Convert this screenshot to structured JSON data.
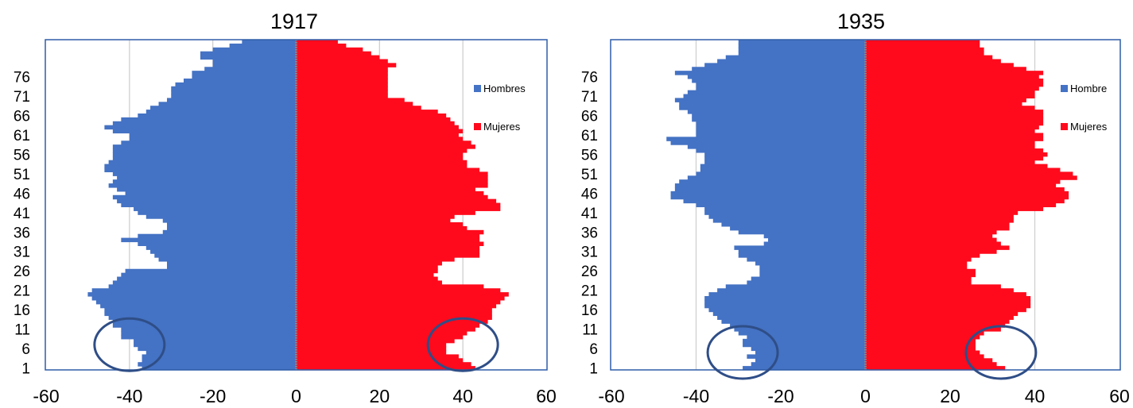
{
  "colors": {
    "men": "#4472c4",
    "women": "#ff0a1c",
    "frame": "#2e5da8",
    "grid": "#d0d0d0",
    "circle": "#2f4e87"
  },
  "chart_data": [
    {
      "type": "bar",
      "orientation": "horizontal-population-pyramid",
      "title": "1917",
      "xlim": [
        -60,
        60
      ],
      "x_ticks": [
        "-60",
        "-40",
        "-20",
        "0",
        "20",
        "40",
        "60"
      ],
      "ylim": [
        1,
        79
      ],
      "y_ticks": [
        "1",
        "6",
        "11",
        "16",
        "21",
        "26",
        "31",
        "36",
        "41",
        "46",
        "51",
        "56",
        "61",
        "66",
        "71",
        "76"
      ],
      "legend_position": "right",
      "grid": "vertical",
      "annotations": [
        {
          "type": "ellipse",
          "x": -40,
          "y": 7
        },
        {
          "type": "ellipse",
          "x": 40,
          "y": 7
        }
      ],
      "series": [
        {
          "name": "Hombres",
          "side": "left",
          "values": [
            -37,
            -38,
            -37,
            -37,
            -36,
            -38,
            -39,
            -39,
            -42,
            -42,
            -42,
            -44,
            -44,
            -45,
            -46,
            -46,
            -47,
            -48,
            -49,
            -50,
            -49,
            -45,
            -44,
            -43,
            -42,
            -41,
            -31,
            -31,
            -33,
            -34,
            -35,
            -36,
            -38,
            -42,
            -38,
            -32,
            -31,
            -31,
            -32,
            -36,
            -38,
            -39,
            -42,
            -43,
            -44,
            -41,
            -43,
            -45,
            -44,
            -43,
            -44,
            -46,
            -46,
            -45,
            -44,
            -44,
            -44,
            -44,
            -42,
            -40,
            -40,
            -44,
            -46,
            -44,
            -42,
            -38,
            -36,
            -35,
            -33,
            -31,
            -30,
            -30,
            -30,
            -29,
            -27,
            -25,
            -25,
            -22,
            -20,
            -20,
            -23,
            -23,
            -20,
            -16,
            -13
          ]
        },
        {
          "name": "Mujeres",
          "side": "right",
          "values": [
            43,
            42,
            40,
            39,
            36,
            36,
            36,
            38,
            40,
            41,
            43,
            44,
            46,
            47,
            47,
            47,
            48,
            49,
            50,
            51,
            49,
            45,
            35,
            34,
            33,
            34,
            34,
            35,
            38,
            44,
            44,
            44,
            45,
            44,
            44,
            45,
            41,
            40,
            37,
            38,
            43,
            49,
            49,
            48,
            46,
            45,
            43,
            46,
            46,
            46,
            46,
            44,
            41,
            41,
            40,
            40,
            41,
            43,
            42,
            40,
            39,
            40,
            39,
            38,
            37,
            36,
            34,
            30,
            28,
            26,
            22,
            22,
            22,
            22,
            22,
            22,
            22,
            22,
            24,
            22,
            20,
            18,
            16,
            12,
            10
          ]
        }
      ]
    },
    {
      "type": "bar",
      "orientation": "horizontal-population-pyramid",
      "title": "1935",
      "xlim": [
        -60,
        60
      ],
      "x_ticks": [
        "-60",
        "-40",
        "-20",
        "0",
        "20",
        "40",
        "60"
      ],
      "ylim": [
        1,
        79
      ],
      "y_ticks": [
        "1",
        "6",
        "11",
        "16",
        "21",
        "26",
        "31",
        "36",
        "41",
        "46",
        "51",
        "56",
        "61",
        "66",
        "71",
        "76"
      ],
      "legend_position": "right",
      "grid": "vertical",
      "annotations": [
        {
          "type": "ellipse",
          "x": -29,
          "y": 5
        },
        {
          "type": "ellipse",
          "x": 32,
          "y": 5
        }
      ],
      "series": [
        {
          "name": "Hombre",
          "side": "left",
          "values": [
            -29,
            -27,
            -26,
            -28,
            -26,
            -27,
            -29,
            -29,
            -28,
            -30,
            -31,
            -32,
            -34,
            -35,
            -36,
            -37,
            -38,
            -38,
            -38,
            -37,
            -35,
            -33,
            -28,
            -27,
            -25,
            -25,
            -25,
            -26,
            -28,
            -30,
            -30,
            -31,
            -24,
            -23,
            -24,
            -30,
            -32,
            -34,
            -36,
            -37,
            -38,
            -38,
            -40,
            -43,
            -46,
            -46,
            -45,
            -45,
            -44,
            -42,
            -40,
            -39,
            -39,
            -38,
            -38,
            -38,
            -40,
            -42,
            -46,
            -47,
            -40,
            -40,
            -40,
            -40,
            -41,
            -41,
            -42,
            -44,
            -44,
            -45,
            -43,
            -42,
            -40,
            -40,
            -41,
            -42,
            -45,
            -41,
            -38,
            -35,
            -33,
            -30,
            -30,
            -30,
            -30
          ]
        },
        {
          "name": "Mujeres",
          "side": "right",
          "values": [
            33,
            31,
            30,
            28,
            27,
            26,
            26,
            26,
            27,
            28,
            32,
            33,
            34,
            35,
            36,
            38,
            39,
            39,
            39,
            38,
            35,
            32,
            25,
            25,
            26,
            26,
            24,
            24,
            25,
            27,
            31,
            34,
            32,
            31,
            30,
            31,
            34,
            34,
            35,
            35,
            36,
            42,
            45,
            47,
            48,
            48,
            47,
            45,
            46,
            50,
            49,
            46,
            43,
            40,
            42,
            43,
            42,
            40,
            40,
            42,
            42,
            40,
            41,
            42,
            42,
            42,
            42,
            40,
            37,
            38,
            40,
            40,
            41,
            42,
            42,
            41,
            42,
            38,
            35,
            32,
            30,
            28,
            28,
            27,
            27
          ]
        }
      ]
    }
  ]
}
